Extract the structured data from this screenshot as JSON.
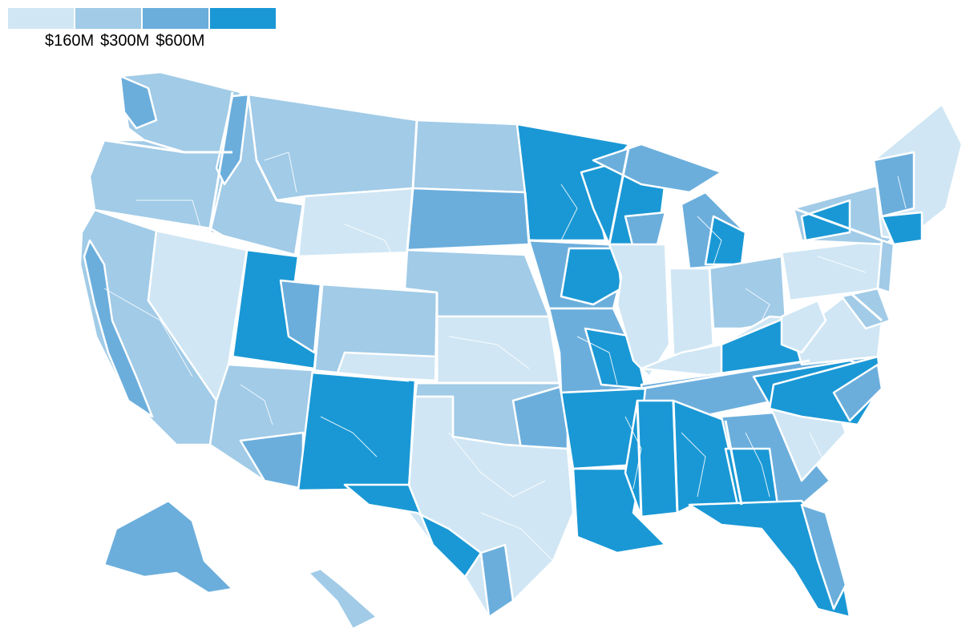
{
  "legend": {
    "labels": [
      "$160M",
      "$300M",
      "$600M"
    ],
    "colors": [
      "#d0e6f4",
      "#a1cbe7",
      "#6baedc",
      "#1a98d5"
    ]
  },
  "map": {
    "palette": {
      "tier1": "#d0e6f4",
      "tier2": "#a1cbe7",
      "tier3": "#6baedc",
      "tier4": "#1a98d5"
    }
  }
}
